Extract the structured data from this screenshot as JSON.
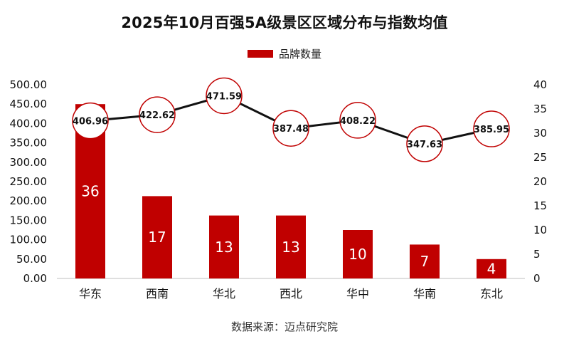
{
  "title": "2025年10月百强5A级景区区域分布与指数均值",
  "source": "数据来源：迈点研究院",
  "colors": {
    "bar": "#C00000",
    "line": "#111111",
    "marker_stroke": "#C00000",
    "marker_fill": "#FFFFFF"
  },
  "chart_data": {
    "type": "bar",
    "categories": [
      "华东",
      "西南",
      "华北",
      "西北",
      "华中",
      "华南",
      "东北"
    ],
    "series": [
      {
        "name": "品牌数量",
        "type": "bar",
        "axis": "right",
        "values": [
          36,
          17,
          13,
          13,
          10,
          7,
          4
        ],
        "labels": [
          "36",
          "17",
          "13",
          "13",
          "10",
          "7",
          "4"
        ]
      },
      {
        "type": "line",
        "axis": "left",
        "values": [
          406.96,
          422.62,
          471.59,
          387.48,
          408.22,
          347.63,
          385.95
        ],
        "labels": [
          "406.96",
          "422.62",
          "471.59",
          "387.48",
          "408.22",
          "347.63",
          "385.95"
        ]
      }
    ],
    "y_left": {
      "ylim": [
        0,
        500
      ],
      "ticks": [
        "0.00",
        "50.00",
        "100.00",
        "150.00",
        "200.00",
        "250.00",
        "300.00",
        "350.00",
        "400.00",
        "450.00",
        "500.00"
      ]
    },
    "y_right": {
      "ylim": [
        0,
        40
      ],
      "ticks": [
        "0",
        "5",
        "10",
        "15",
        "20",
        "25",
        "30",
        "35",
        "40"
      ]
    },
    "legend": "top-center",
    "grid": false
  }
}
